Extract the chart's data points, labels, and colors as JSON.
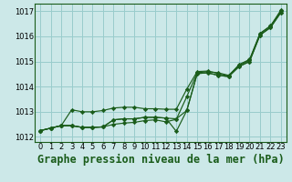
{
  "title": "Graphe pression niveau de la mer (hPa)",
  "bg_color": "#cce8e8",
  "grid_color": "#99cccc",
  "line_color": "#1a5c1a",
  "xlim": [
    -0.5,
    23.5
  ],
  "ylim": [
    1011.8,
    1017.3
  ],
  "xticks": [
    0,
    1,
    2,
    3,
    4,
    5,
    6,
    7,
    8,
    9,
    10,
    11,
    12,
    13,
    14,
    15,
    16,
    17,
    18,
    19,
    20,
    21,
    22,
    23
  ],
  "yticks": [
    1012,
    1013,
    1014,
    1015,
    1016,
    1017
  ],
  "series": [
    [
      1012.25,
      1012.35,
      1012.45,
      1012.45,
      1012.38,
      1012.38,
      1012.4,
      1012.5,
      1012.55,
      1012.58,
      1012.65,
      1012.68,
      1012.6,
      1012.7,
      1013.6,
      1014.55,
      1014.6,
      1014.55,
      1014.45,
      1014.85,
      1015.05,
      1016.1,
      1016.4,
      1017.05
    ],
    [
      1012.25,
      1012.35,
      1012.45,
      1012.45,
      1012.38,
      1012.38,
      1012.4,
      1012.68,
      1012.72,
      1012.72,
      1012.78,
      1012.78,
      1012.75,
      1012.72,
      1013.05,
      1014.52,
      1014.55,
      1014.45,
      1014.4,
      1014.8,
      1015.0,
      1016.05,
      1016.35,
      1016.95
    ],
    [
      1012.25,
      1012.35,
      1012.45,
      1013.08,
      1013.0,
      1013.0,
      1013.05,
      1013.15,
      1013.18,
      1013.18,
      1013.12,
      1013.12,
      1013.1,
      1013.1,
      1013.9,
      1014.6,
      1014.62,
      1014.52,
      1014.42,
      1014.88,
      1015.08,
      1016.12,
      1016.42,
      1017.0
    ],
    [
      1012.25,
      1012.35,
      1012.45,
      1012.45,
      1012.38,
      1012.38,
      1012.4,
      1012.68,
      1012.72,
      1012.72,
      1012.78,
      1012.78,
      1012.75,
      1012.22,
      1013.05,
      1014.52,
      1014.55,
      1014.45,
      1014.4,
      1014.8,
      1015.0,
      1016.05,
      1016.35,
      1016.95
    ]
  ],
  "title_fontsize": 8.5,
  "tick_fontsize": 6.0
}
